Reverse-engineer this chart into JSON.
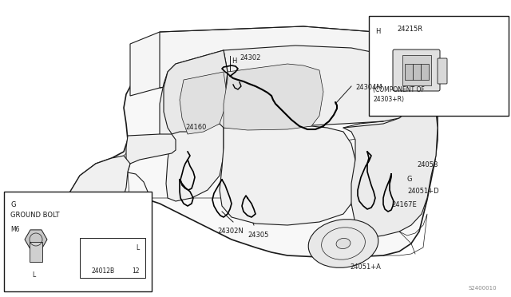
{
  "bg_color": "#ffffff",
  "line_color": "#1a1a1a",
  "text_color": "#1a1a1a",
  "diagram_code": "S2400010",
  "labels": {
    "H_top": "H",
    "part_24302": "24302",
    "part_24160": "24160",
    "part_24304M": "24304M",
    "part_24058": "24058",
    "G_label": "G",
    "part_24051D": "24051+D",
    "part_24167E": "24167E",
    "part_24302N": "24302N",
    "part_24305": "24305",
    "part_24051A": "24051+A",
    "inset_H": "H",
    "inset_part": "24215R",
    "inset_component_of": "(COMPONENT OF",
    "inset_component_num": "24303+R)",
    "ground_G": "G",
    "ground_title": "GROUND BOLT",
    "ground_M6": "M6",
    "ground_part": "24012B",
    "ground_L_val": "12",
    "ground_L_col": "L"
  }
}
